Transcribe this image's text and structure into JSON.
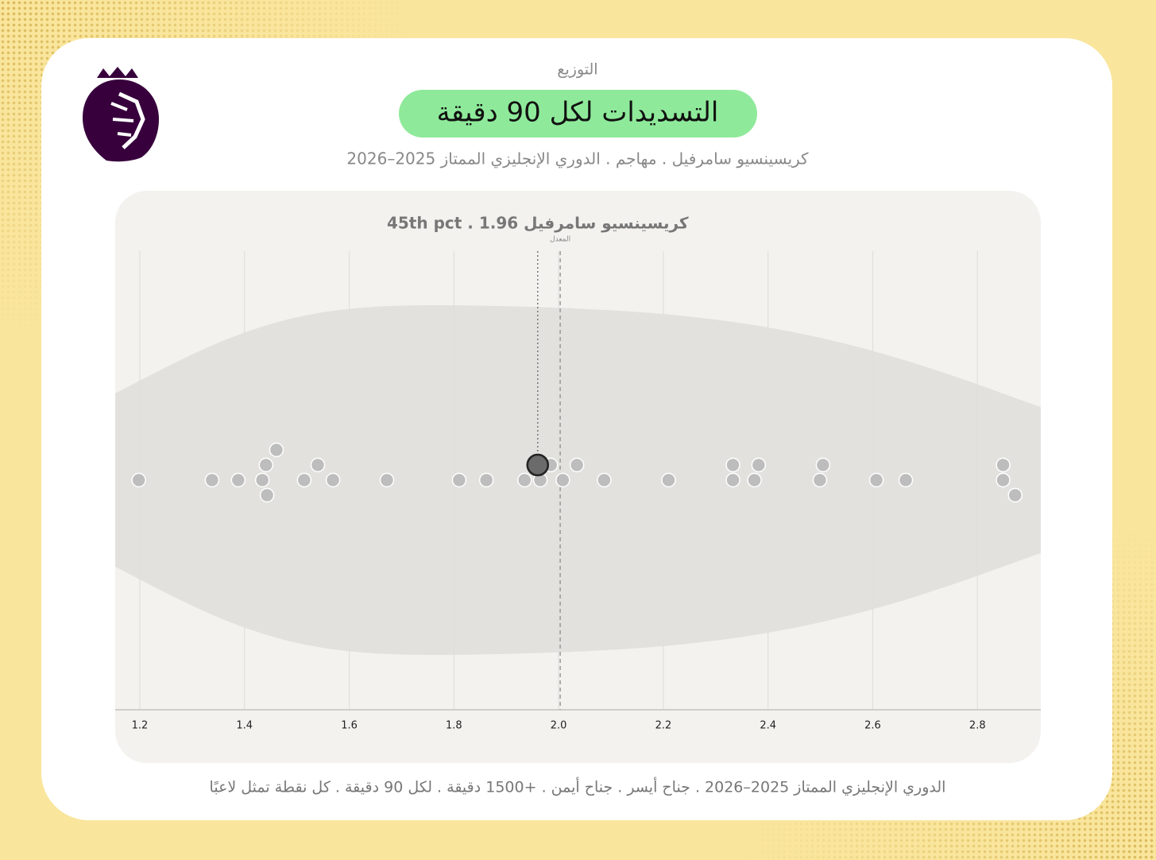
{
  "chart_data": {
    "type": "beeswarm",
    "supertitle": "التوزيع",
    "title": "التسديدات لكل 90 دقيقة",
    "subtitle": "كريسينسيو سامرفيل . مهاجم . الدوري الإنجليزي الممتاز 2025–2026",
    "highlight_label": "كريسينسيو سامرفيل 45th pct . 1.96",
    "footer": "الدوري الإنجليزي الممتاز 2025–2026 . جناح أيسر . جناح أيمن . +1500 دقيقة . لكل 90 دقيقة . كل نقطة تمثل لاعبًا",
    "mean_label": "المعدل",
    "mean": 2.003,
    "highlight": {
      "value": 1.96,
      "color": "#6b6b6b"
    },
    "series": [
      {
        "color": "#bdbdbd",
        "values": [
          1.198,
          1.338,
          1.388,
          1.434,
          1.441,
          1.443,
          1.461,
          1.514,
          1.54,
          1.569,
          1.672,
          1.81,
          1.862,
          1.935,
          1.965,
          1.985,
          2.008,
          2.035,
          2.087,
          2.21,
          2.333,
          2.333,
          2.374,
          2.382,
          2.499,
          2.505,
          2.607,
          2.663,
          2.849,
          2.849,
          2.872
        ]
      }
    ],
    "xlim": [
      1.153,
      2.921
    ],
    "xticks": [
      1.2,
      1.4,
      1.6,
      1.8,
      {
        "value": 2,
        "label": "2.0"
      },
      2.2,
      2.4,
      2.6,
      2.8
    ],
    "grid": true
  }
}
